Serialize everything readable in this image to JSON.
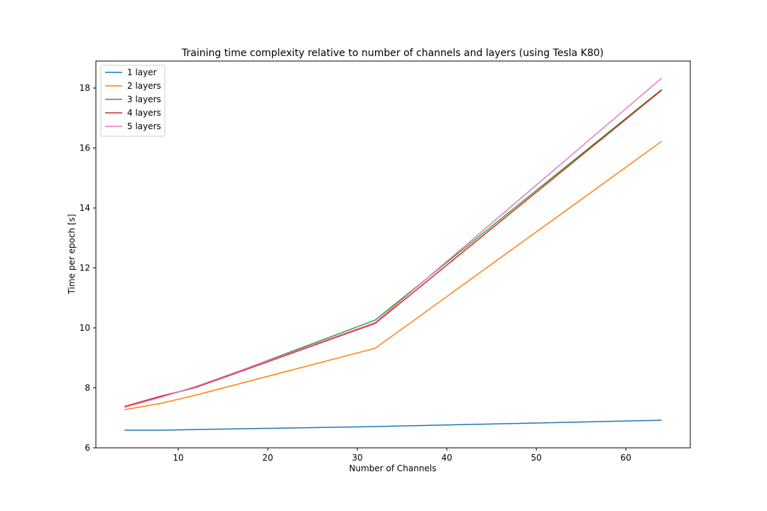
{
  "chart_data": {
    "type": "line",
    "title": "Training time complexity relative to number of channels and layers (using Tesla K80)",
    "xlabel": "Number of Channels",
    "ylabel": "Time per epoch [s]",
    "xlim": [
      0.8,
      67.2
    ],
    "ylim": [
      6,
      18.9
    ],
    "xticks": [
      10,
      20,
      30,
      40,
      50,
      60
    ],
    "yticks": [
      6,
      8,
      10,
      12,
      14,
      16,
      18
    ],
    "grid": false,
    "legend_position": "top-left",
    "x": [
      4,
      8,
      12,
      32,
      64
    ],
    "series": [
      {
        "name": "1 layer",
        "color": "#1f77b4",
        "values": [
          6.59,
          6.59,
          6.61,
          6.71,
          6.92
        ]
      },
      {
        "name": "2 layers",
        "color": "#ff7f0e",
        "values": [
          7.27,
          7.48,
          7.76,
          9.32,
          16.22
        ]
      },
      {
        "name": "3 layers",
        "color": "#2ca02c",
        "values": [
          7.37,
          7.7,
          8.02,
          10.26,
          17.95
        ]
      },
      {
        "name": "4 layers",
        "color": "#d62728",
        "values": [
          7.38,
          7.72,
          8.02,
          10.15,
          17.93
        ]
      },
      {
        "name": "5 layers",
        "color": "#e377c2",
        "values": [
          7.35,
          7.68,
          8.05,
          10.18,
          18.33
        ]
      }
    ]
  }
}
